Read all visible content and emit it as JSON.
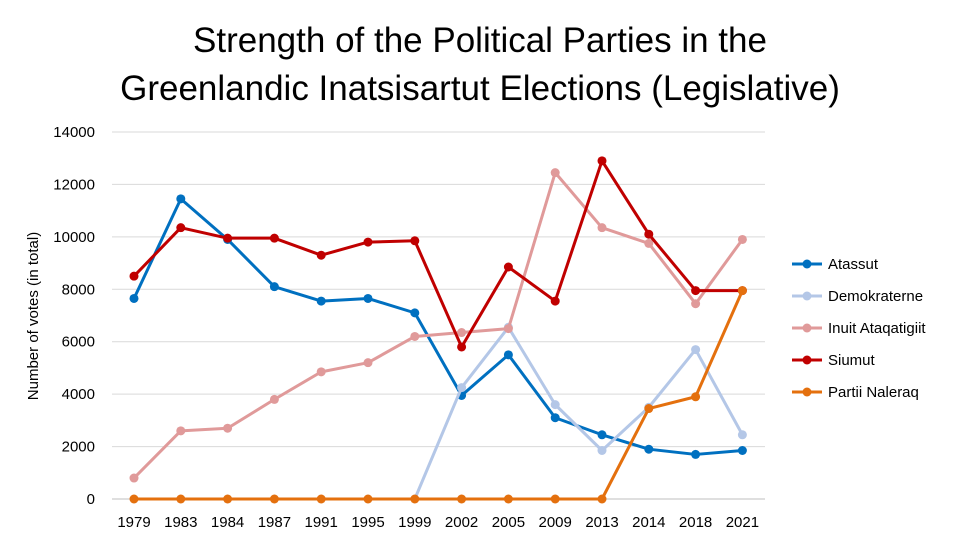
{
  "chart_data": {
    "type": "line",
    "title_lines": [
      "Strength of the Political Parties in the",
      "Greenlandic Inatsisartut Elections (Legislative)"
    ],
    "xlabel": "",
    "ylabel": "Number of votes (in total)",
    "ylim": [
      0,
      14000
    ],
    "yticks": [
      0,
      2000,
      4000,
      6000,
      8000,
      10000,
      12000,
      14000
    ],
    "grid": true,
    "legend_position": "right",
    "categories": [
      "1979",
      "1983",
      "1984",
      "1987",
      "1991",
      "1995",
      "1999",
      "2002",
      "2005",
      "2009",
      "2013",
      "2014",
      "2018",
      "2021"
    ],
    "series": [
      {
        "name": "Atassut",
        "color": "#0070c0",
        "values": [
          7650,
          11450,
          9900,
          8100,
          7550,
          7650,
          7100,
          3950,
          5500,
          3100,
          2450,
          1900,
          1700,
          1850
        ]
      },
      {
        "name": "Demokraterne",
        "color": "#b4c7e7",
        "values": [
          null,
          null,
          null,
          null,
          null,
          null,
          0,
          4250,
          6550,
          3600,
          1850,
          3500,
          5700,
          2450
        ]
      },
      {
        "name": "Inuit Ataqatigiit",
        "color": "#e09a9a",
        "values": [
          800,
          2600,
          2700,
          3800,
          4850,
          5200,
          6200,
          6350,
          6500,
          12450,
          10350,
          9750,
          7450,
          9900
        ]
      },
      {
        "name": "Siumut",
        "color": "#c00000",
        "values": [
          8500,
          10350,
          9950,
          9950,
          9300,
          9800,
          9850,
          5800,
          8850,
          7550,
          12900,
          10100,
          7950,
          7950
        ]
      },
      {
        "name": "Partii Naleraq",
        "color": "#e4700e",
        "values": [
          0,
          0,
          0,
          0,
          0,
          0,
          0,
          0,
          0,
          0,
          0,
          3450,
          3900,
          7950
        ]
      }
    ]
  }
}
